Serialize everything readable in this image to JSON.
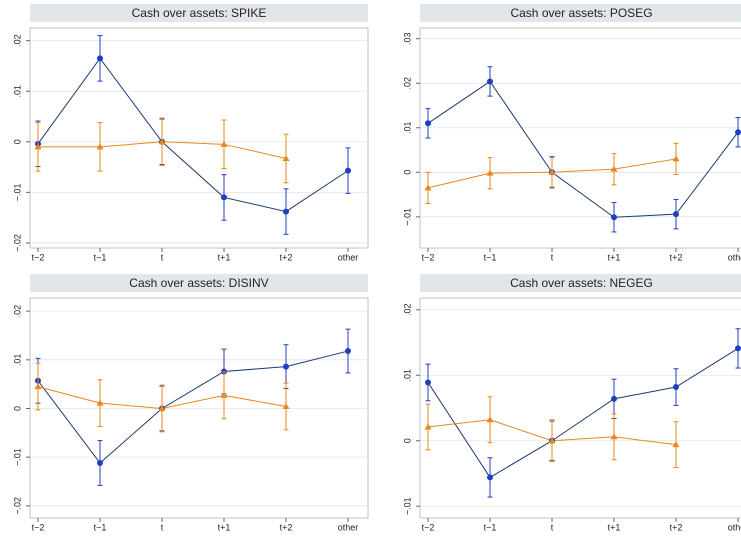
{
  "chart_data": [
    {
      "type": "line",
      "title": "Cash over assets: SPIKE",
      "categories": [
        "t−2",
        "t−1",
        "t",
        "t+1",
        "t+2",
        "other"
      ],
      "series": [
        {
          "color": "#1f3fbf",
          "marker": "circle",
          "values": [
            -0.0004,
            0.0165,
            0,
            -0.011,
            -0.0138,
            -0.0057
          ],
          "errors": [
            0.0045,
            0.0045,
            0.0045,
            0.0045,
            0.0045,
            0.0045
          ]
        },
        {
          "color": "#e8871e",
          "marker": "triangle",
          "values": [
            -0.001,
            -0.001,
            0,
            -0.0005,
            -0.0033,
            null
          ],
          "errors": [
            0.0048,
            0.0048,
            0.0047,
            0.0048,
            0.0048,
            null
          ]
        }
      ],
      "ylim": [
        -0.021,
        0.0225
      ],
      "yticks": [
        {
          "value": -0.02,
          "label": "−.02"
        },
        {
          "value": -0.01,
          "label": "−.01"
        },
        0,
        {
          "value": 0.01,
          "label": ".01"
        },
        {
          "value": 0.02,
          "label": ".02"
        }
      ],
      "grid": true
    },
    {
      "type": "line",
      "title": "Cash over assets: POSEG",
      "categories": [
        "t−2",
        "t−1",
        "t",
        "t+1",
        "t+2",
        "other"
      ],
      "series": [
        {
          "color": "#1f3fbf",
          "marker": "circle",
          "values": [
            0.011,
            0.0204,
            0,
            -0.0101,
            -0.0094,
            0.009
          ],
          "errors": [
            0.0033,
            0.0033,
            0.0035,
            0.0033,
            0.0033,
            0.0033
          ]
        },
        {
          "color": "#e8871e",
          "marker": "triangle",
          "values": [
            -0.0035,
            -0.0002,
            0,
            0.0007,
            0.003,
            null
          ],
          "errors": [
            0.0035,
            0.0035,
            0.0033,
            0.0035,
            0.0035,
            null
          ]
        }
      ],
      "ylim": [
        -0.017,
        0.0324
      ],
      "yticks": [
        {
          "value": -0.01,
          "label": "−.01"
        },
        0,
        {
          "value": 0.01,
          "label": ".01"
        },
        {
          "value": 0.02,
          "label": ".02"
        },
        {
          "value": 0.03,
          "label": ".03"
        }
      ],
      "grid": true
    },
    {
      "type": "line",
      "title": "Cash over assets: DISINV",
      "categories": [
        "t−2",
        "t−1",
        "t",
        "t+1",
        "t+2",
        "other"
      ],
      "series": [
        {
          "color": "#1f3fbf",
          "marker": "circle",
          "values": [
            0.0057,
            -0.0112,
            0,
            0.0076,
            0.0086,
            0.0118
          ],
          "errors": [
            0.0046,
            0.0046,
            0.0046,
            0.0046,
            0.0045,
            0.0045
          ]
        },
        {
          "color": "#e8871e",
          "marker": "triangle",
          "values": [
            0.0045,
            0.0011,
            0,
            0.0027,
            0.0004,
            null
          ],
          "errors": [
            0.0048,
            0.0048,
            0.0048,
            0.0048,
            0.0048,
            null
          ]
        }
      ],
      "ylim": [
        -0.0225,
        0.0227
      ],
      "yticks": [
        {
          "value": -0.02,
          "label": "−.02"
        },
        {
          "value": -0.01,
          "label": "−.01"
        },
        0,
        {
          "value": 0.01,
          "label": ".01"
        },
        {
          "value": 0.02,
          "label": ".02"
        }
      ],
      "grid": true
    },
    {
      "type": "line",
      "title": "Cash over assets: NEGEG",
      "categories": [
        "t−2",
        "t−1",
        "t",
        "t+1",
        "t+2",
        "other"
      ],
      "series": [
        {
          "color": "#1f3fbf",
          "marker": "circle",
          "values": [
            0.0089,
            -0.0056,
            0,
            0.0064,
            0.0082,
            0.0141
          ],
          "errors": [
            0.0028,
            0.003,
            0.003,
            0.003,
            0.0028,
            0.003
          ]
        },
        {
          "color": "#e8871e",
          "marker": "triangle",
          "values": [
            0.0021,
            0.0032,
            0,
            0.0006,
            -0.0006,
            null
          ],
          "errors": [
            0.0035,
            0.0035,
            0.0032,
            0.0035,
            0.0035,
            null
          ]
        }
      ],
      "ylim": [
        -0.0118,
        0.0218
      ],
      "yticks": [
        {
          "value": -0.01,
          "label": "−.01"
        },
        0,
        {
          "value": 0.01,
          "label": ".01"
        },
        {
          "value": 0.02,
          "label": ".02"
        }
      ],
      "grid": true
    }
  ]
}
